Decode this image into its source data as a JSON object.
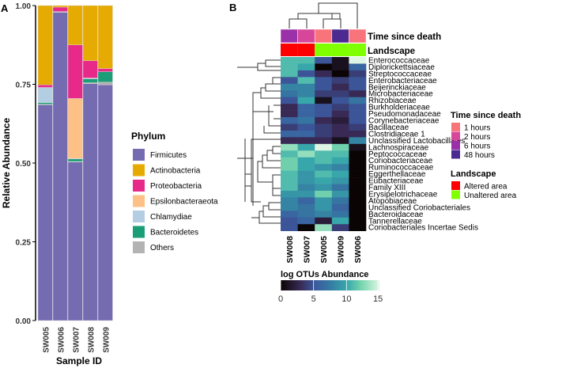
{
  "chart_data": [
    {
      "panel": "A",
      "type": "bar",
      "stacked": true,
      "title": "",
      "xlabel": "Sample ID",
      "ylabel": "Relative Abundance",
      "ylim": [
        0,
        1
      ],
      "yticks": [
        "0.00",
        "0.25",
        "0.50",
        "0.75",
        "1.00"
      ],
      "categories": [
        "SW005",
        "SW006",
        "SW007",
        "SW008",
        "SW009"
      ],
      "legend_title": "Phylum",
      "legend_position": "right",
      "series": [
        {
          "name": "Firmicutes",
          "color": "#756bb1",
          "values": [
            0.685,
            0.978,
            0.503,
            0.752,
            0.748
          ]
        },
        {
          "name": "Others",
          "color": "#b3b3b3",
          "values": [
            0.002,
            0.003,
            0.002,
            0.003,
            0.009
          ]
        },
        {
          "name": "Bacteroidetes",
          "color": "#1b9e77",
          "values": [
            0.005,
            0.0,
            0.008,
            0.012,
            0.033
          ]
        },
        {
          "name": "Chlamydiae",
          "color": "#b3cde3",
          "values": [
            0.048,
            0.0,
            0.002,
            0.003,
            0.0
          ]
        },
        {
          "name": "Epsilonbacteraeota",
          "color": "#fdc086",
          "values": [
            0.0,
            0.0,
            0.19,
            0.0,
            0.0
          ]
        },
        {
          "name": "Proteobacteria",
          "color": "#e7298a",
          "values": [
            0.008,
            0.014,
            0.17,
            0.055,
            0.01
          ]
        },
        {
          "name": "Actinobacteria",
          "color": "#e6ab02",
          "values": [
            0.252,
            0.005,
            0.125,
            0.175,
            0.2
          ]
        }
      ],
      "legend_order": [
        "Firmicutes",
        "Actinobacteria",
        "Proteobacteria",
        "Epsilonbacteraeota",
        "Chlamydiae",
        "Bacteroidetes",
        "Others"
      ]
    },
    {
      "panel": "B",
      "type": "heatmap",
      "columns": [
        "SW008",
        "SW007",
        "SW005",
        "SW009",
        "SW006"
      ],
      "rows": [
        "Enterococcaceae",
        "Diplorickettsiaceae",
        "Streptococcaceae",
        "Enterobacteriaceae",
        "Beijerinckiaceae",
        "Microbacteriaceae",
        "Rhizobiaceae",
        "Burkholderiaceae",
        "Pseudomonadaceae",
        "Corynebacteriaceae",
        "Bacillaceae",
        "Clostridiaceae 1",
        "Unclassified Lactobacillales",
        "Lachnospiraceae",
        "Peptococcaceae",
        "Coriobacteriaceae",
        "Ruminococcaceae",
        "Eggerthellaceae",
        "Eubacteriaceae",
        "Family XIII",
        "Erysipelotrichaceae",
        "Atopobiaceae",
        "Unclassified Coriobacteriales",
        "Bacteroidaceae",
        "Tannerellaceae",
        "Coriobacteriales Incertae Sedis"
      ],
      "values": [
        [
          11,
          11,
          5,
          1,
          15
        ],
        [
          11,
          10,
          0,
          1,
          6
        ],
        [
          11,
          5,
          3,
          0,
          4
        ],
        [
          5,
          11,
          5,
          4,
          5
        ],
        [
          8,
          8,
          5,
          3,
          5
        ],
        [
          7,
          8,
          4,
          4,
          3
        ],
        [
          5,
          10,
          1,
          5,
          7
        ],
        [
          3,
          6,
          5,
          4,
          5
        ],
        [
          3,
          6,
          5,
          3,
          5
        ],
        [
          6,
          7,
          3,
          2,
          5
        ],
        [
          4,
          5,
          4,
          3,
          4
        ],
        [
          6,
          6,
          4,
          3,
          3
        ],
        [
          3,
          3,
          3,
          1,
          8
        ],
        [
          13,
          10,
          15,
          12,
          1
        ],
        [
          11,
          13,
          11,
          11,
          0
        ],
        [
          12,
          10,
          11,
          10,
          0
        ],
        [
          12,
          10,
          9,
          8,
          0
        ],
        [
          11,
          9,
          11,
          10,
          0
        ],
        [
          11,
          9,
          10,
          9,
          0
        ],
        [
          11,
          8,
          9,
          7,
          0
        ],
        [
          9,
          9,
          12,
          9,
          0
        ],
        [
          8,
          6,
          9,
          7,
          0
        ],
        [
          8,
          7,
          9,
          6,
          0
        ],
        [
          6,
          7,
          8,
          7,
          0
        ],
        [
          5,
          6,
          2,
          10,
          0
        ],
        [
          5,
          0,
          13,
          4,
          0
        ]
      ],
      "colorbar": {
        "title": "log OTUs Abundance",
        "range": [
          0,
          15
        ],
        "ticks": [
          "0",
          "5",
          "10",
          "15"
        ]
      },
      "annotations": {
        "time_title": "Time since death",
        "landscape_title": "Landscape",
        "time": [
          "6 hours",
          "2 hours",
          "1 hours",
          "48 hours",
          "1 hours"
        ],
        "landscape": [
          "Altered area",
          "Altered area",
          "Unaltered area",
          "Unaltered area",
          "Unaltered area"
        ]
      },
      "time_legend": [
        {
          "label": "1 hours",
          "color": "#f8737a"
        },
        {
          "label": "2 hours",
          "color": "#d6479a"
        },
        {
          "label": "6 hours",
          "color": "#9b31a8"
        },
        {
          "label": "48 hours",
          "color": "#4c2a90"
        }
      ],
      "landscape_legend": [
        {
          "label": "Altered area",
          "color": "#ff0000"
        },
        {
          "label": "Unaltered area",
          "color": "#80ff00"
        }
      ]
    }
  ],
  "panel_labels": [
    "A",
    "B"
  ]
}
